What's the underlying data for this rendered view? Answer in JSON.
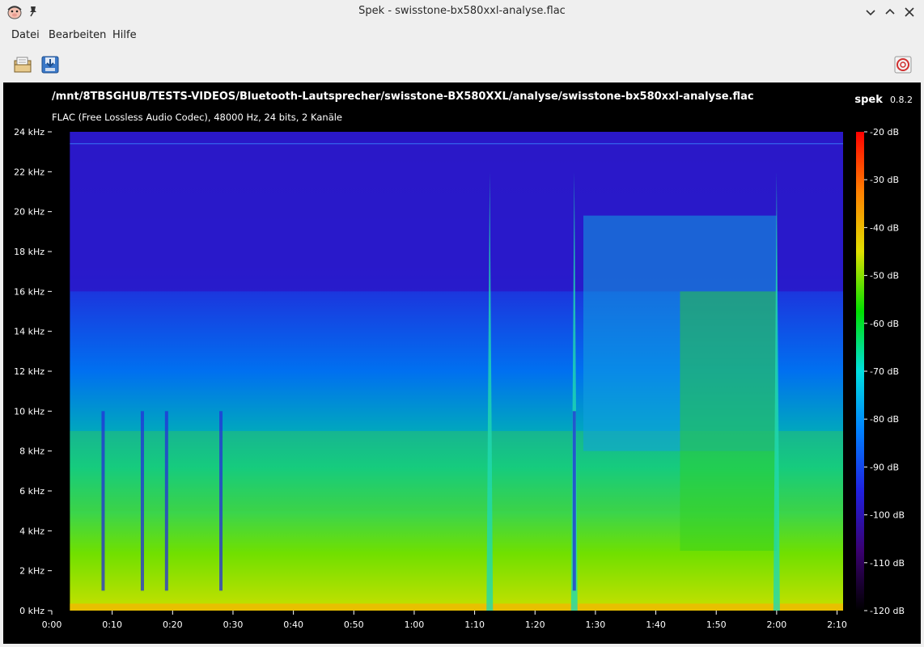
{
  "window": {
    "title": "Spek - swisstone-bx580xxl-analyse.flac",
    "app_icon": "spek-pig-icon",
    "controls": [
      "minimize-icon",
      "maximize-icon",
      "close-icon"
    ]
  },
  "menubar": {
    "items": [
      "Datei",
      "Bearbeiten",
      "Hilfe"
    ]
  },
  "toolbar": {
    "buttons": [
      "open-file-icon",
      "save-icon",
      "help-icon"
    ]
  },
  "spectrogram": {
    "file_path": "/mnt/8TBSGHUB/TESTS-VIDEOS/Bluetooth-Lautsprecher/swisstone-BX580XXL/analyse/swisstone-bx580xxl-analyse.flac",
    "brand_name": "spek",
    "brand_version": "0.8.2",
    "file_info": "FLAC (Free Lossless Audio Codec), 48000 Hz, 24 bits, 2 Kanäle"
  },
  "chart_data": {
    "type": "heatmap",
    "x_ticks": [
      "0:00",
      "0:10",
      "0:20",
      "0:30",
      "0:40",
      "0:50",
      "1:00",
      "1:10",
      "1:20",
      "1:30",
      "1:40",
      "1:50",
      "2:00",
      "2:10"
    ],
    "x_tick_seconds": [
      0,
      10,
      20,
      30,
      40,
      50,
      60,
      70,
      80,
      90,
      100,
      110,
      120,
      130
    ],
    "xlim_seconds": [
      0,
      131
    ],
    "y_ticks": [
      "0 kHz",
      "2 kHz",
      "4 kHz",
      "6 kHz",
      "8 kHz",
      "10 kHz",
      "12 kHz",
      "14 kHz",
      "16 kHz",
      "18 kHz",
      "20 kHz",
      "22 kHz",
      "24 kHz"
    ],
    "y_tick_khz": [
      0,
      2,
      4,
      6,
      8,
      10,
      12,
      14,
      16,
      18,
      20,
      22,
      24
    ],
    "ylim_khz": [
      0,
      24
    ],
    "colorbar_ticks": [
      "-20 dB",
      "-30 dB",
      "-40 dB",
      "-50 dB",
      "-60 dB",
      "-70 dB",
      "-80 dB",
      "-90 dB",
      "-100 dB",
      "-110 dB",
      "-120 dB"
    ],
    "colorbar_db": [
      -20,
      -30,
      -40,
      -50,
      -60,
      -70,
      -80,
      -90,
      -100,
      -110,
      -120
    ],
    "colorbar_range_db": [
      -120,
      -20
    ],
    "colormap_stops": [
      "#000000",
      "#3a0070",
      "#2020e0",
      "#0080ff",
      "#00e0e0",
      "#00e000",
      "#e0e000",
      "#ff8000",
      "#ff0000"
    ],
    "silence_start_seconds": 3,
    "spikes_seconds": [
      72.5,
      86.5,
      120
    ]
  }
}
